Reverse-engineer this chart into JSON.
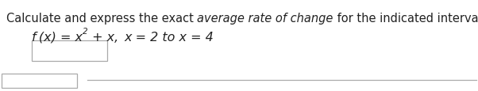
{
  "bg_color": "#ffffff",
  "text_color": "#222222",
  "box_edge_color": "#aaaaaa",
  "title_normal1": "Calculate and express the exact ",
  "title_italic": "average rate of change",
  "title_normal2": " for the indicated interval.",
  "font_size_title": 10.5,
  "font_size_formula": 11.5,
  "font_size_super": 7.5
}
